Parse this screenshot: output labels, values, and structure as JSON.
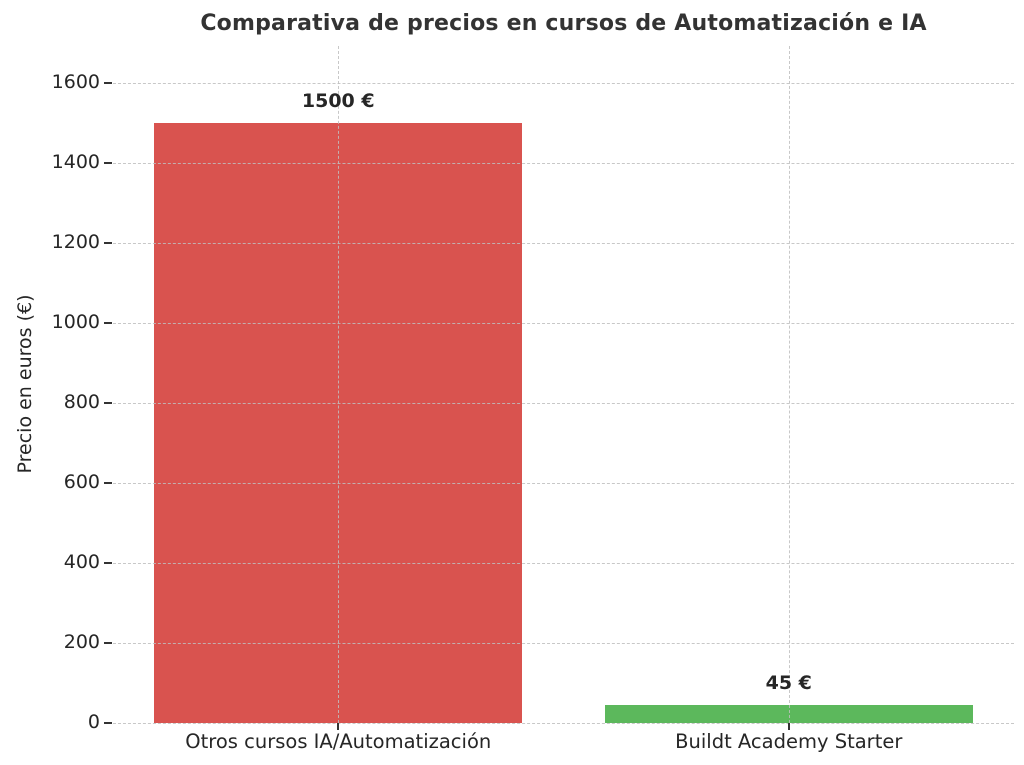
{
  "chart_data": {
    "type": "bar",
    "title": "Comparativa de precios en cursos de Automatización e IA",
    "ylabel": "Precio en euros (€)",
    "xlabel": "",
    "categories": [
      "Otros cursos IA/Automatización",
      "Buildt Academy Starter"
    ],
    "values": [
      1500,
      45
    ],
    "value_labels": [
      "1500 €",
      "45 €"
    ],
    "bar_colors": [
      "#d9534f",
      "#5cb85c"
    ],
    "yticks": [
      0,
      200,
      400,
      600,
      800,
      1000,
      1200,
      1400,
      1600
    ],
    "ylim": [
      0,
      1692
    ],
    "grid": "dashed, both axes, drawn over bars",
    "legend": "none",
    "background_color": "#ffffff",
    "title_color": "#333333",
    "tick_label_color": "#262626",
    "gridline_color": "#bebebe"
  }
}
